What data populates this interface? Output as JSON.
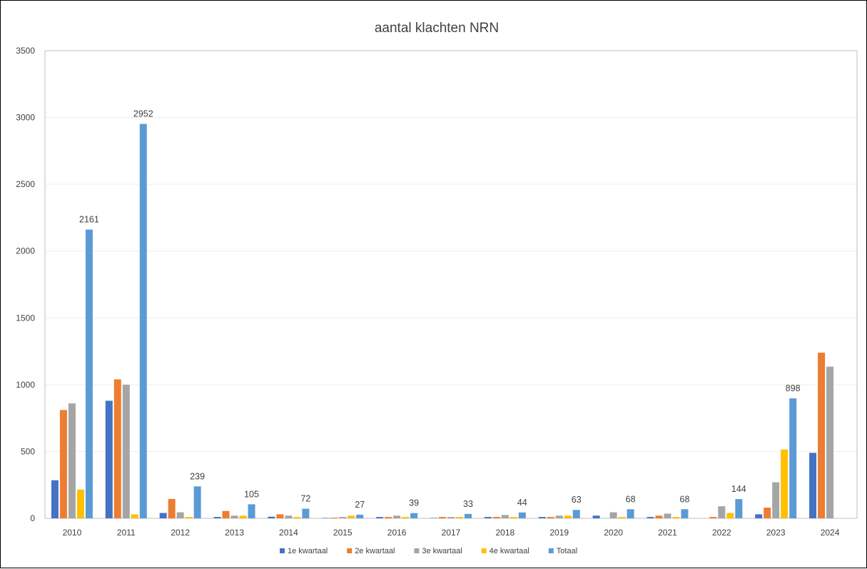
{
  "chart_data": {
    "type": "bar",
    "title": "aantal klachten NRN",
    "xlabel": "",
    "ylabel": "",
    "ylim": [
      0,
      3500
    ],
    "yticks": [
      0,
      500,
      1000,
      1500,
      2000,
      2500,
      3000,
      3500
    ],
    "grid": true,
    "legend_position": "bottom",
    "categories": [
      "2010",
      "2011",
      "2012",
      "2013",
      "2014",
      "2015",
      "2016",
      "2017",
      "2018",
      "2019",
      "2020",
      "2021",
      "2022",
      "2023",
      "2024"
    ],
    "series": [
      {
        "name": "1e kwartaal",
        "color": "#4472C4",
        "values": [
          285,
          880,
          40,
          10,
          12,
          3,
          10,
          3,
          10,
          10,
          20,
          10,
          0,
          30,
          490
        ]
      },
      {
        "name": "2e kwartaal",
        "color": "#ED7D31",
        "values": [
          810,
          1040,
          145,
          55,
          30,
          5,
          10,
          10,
          10,
          10,
          0,
          20,
          10,
          80,
          1240
        ]
      },
      {
        "name": "3e kwartaal",
        "color": "#A5A5A5",
        "values": [
          860,
          1000,
          45,
          20,
          20,
          10,
          20,
          10,
          25,
          20,
          45,
          35,
          90,
          270,
          1135
        ]
      },
      {
        "name": "4e kwartaal",
        "color": "#FFC000",
        "values": [
          215,
          30,
          10,
          20,
          10,
          20,
          10,
          10,
          10,
          20,
          10,
          10,
          40,
          515,
          null
        ]
      },
      {
        "name": "Totaal",
        "color": "#5B9BD5",
        "values": [
          2161,
          2952,
          239,
          105,
          72,
          27,
          39,
          33,
          44,
          63,
          68,
          68,
          144,
          898,
          null
        ]
      }
    ],
    "data_labels": {
      "series": "Totaal",
      "values": [
        "2161",
        "2952",
        "239",
        "105",
        "72",
        "27",
        "39",
        "33",
        "44",
        "63",
        "68",
        "68",
        "144",
        "898",
        ""
      ]
    }
  }
}
